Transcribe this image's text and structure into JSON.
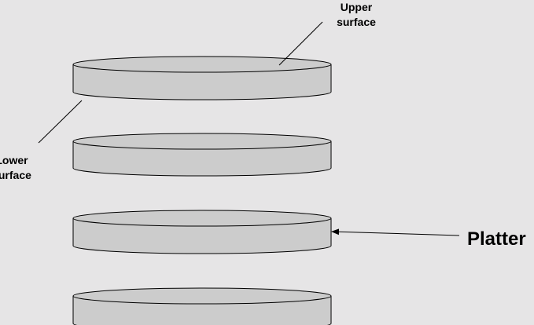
{
  "labels": {
    "upper_surface": "Upper\nsurface",
    "lower_surface": "Lower\nsurface",
    "platter": "Platter"
  },
  "colors": {
    "background": "#e6e5e6",
    "platter_fill": "#cccccc",
    "stroke": "#000000"
  }
}
